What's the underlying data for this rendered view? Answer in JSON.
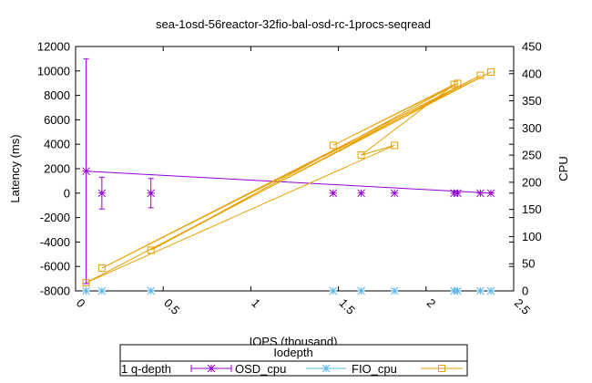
{
  "chart_data": {
    "type": "scatter",
    "title": "sea-1osd-56reactor-32fio-bal-osd-rc-1procs-seqread",
    "xlabel": "IOPS (thousand)",
    "ylabel": "Latency (ms)",
    "y2label": "CPU",
    "xlim": [
      0,
      2.5
    ],
    "ylim": [
      -8000,
      12000
    ],
    "y2lim": [
      0,
      450
    ],
    "xticks": [
      0,
      0.5,
      1,
      1.5,
      2,
      2.5
    ],
    "xtick_labels": [
      "0",
      "0.5",
      "1",
      "1.5",
      "2",
      "2.5"
    ],
    "yticks": [
      -8000,
      -6000,
      -4000,
      -2000,
      0,
      2000,
      4000,
      6000,
      8000,
      10000,
      12000
    ],
    "ytick_labels": [
      "-8000",
      "-6000",
      "-4000",
      "-2000",
      "0",
      "2000",
      "4000",
      "6000",
      "8000",
      "10000",
      "12000"
    ],
    "y2ticks": [
      0,
      50,
      100,
      150,
      200,
      250,
      300,
      350,
      400,
      450
    ],
    "y2tick_labels": [
      "0",
      "50",
      "100",
      "150",
      "200",
      "250",
      "300",
      "350",
      "400",
      "450"
    ],
    "grid": false,
    "legend": {
      "title": "Iodepth",
      "row_label": "1 q-depth",
      "placement": "bottom",
      "entries": [
        "OSD_cpu",
        "FIO_cpu",
        ""
      ]
    },
    "series": [
      {
        "name": "OSD_cpu",
        "axis": "y1",
        "color": "#9400d3",
        "marker": "errorbar-star",
        "x": [
          0.06,
          0.15,
          0.43,
          1.47,
          1.63,
          1.82,
          2.16,
          2.18,
          2.31,
          2.37
        ],
        "y": [
          1800,
          0,
          0,
          0,
          0,
          0,
          0,
          0,
          0,
          0
        ],
        "err_low": [
          -7400,
          -1300,
          -1200,
          0,
          0,
          0,
          0,
          0,
          0,
          0
        ],
        "err_high": [
          11000,
          1300,
          1200,
          0,
          0,
          0,
          0,
          0,
          0,
          0
        ],
        "line_order": [
          0,
          9
        ]
      },
      {
        "name": "FIO_cpu",
        "axis": "y2",
        "color": "#56b4e9",
        "marker": "star",
        "x": [
          0.06,
          0.15,
          0.43,
          1.47,
          1.63,
          1.82,
          2.16,
          2.18,
          2.31,
          2.37
        ],
        "y": [
          0,
          0,
          0,
          0,
          0,
          0,
          0,
          0,
          0,
          0
        ]
      },
      {
        "name": "",
        "axis": "y2",
        "color": "#e69f00",
        "marker": "square",
        "x": [
          0.06,
          0.15,
          0.43,
          1.47,
          1.63,
          1.82,
          2.16,
          2.18,
          2.31,
          2.37
        ],
        "y": [
          15,
          42,
          75,
          268,
          250,
          268,
          380,
          382,
          397,
          403
        ],
        "line_order": [
          0,
          9,
          1,
          8,
          2,
          7,
          3,
          6,
          4,
          5,
          0
        ]
      }
    ]
  }
}
